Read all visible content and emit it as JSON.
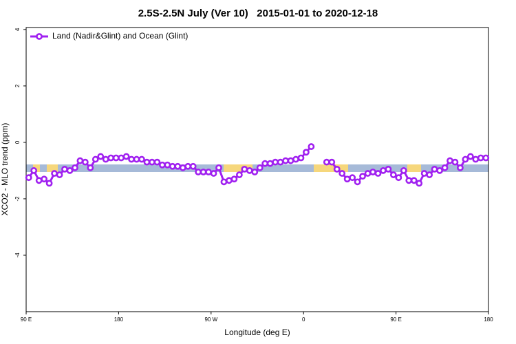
{
  "chart_data": {
    "type": "line",
    "title": "2.5S-2.5N July (Ver 10)   2015-01-01 to 2020-12-18",
    "x_label": "Longitude (deg E)",
    "y_label": "XCO2 - MLO trend (ppm)",
    "xlim": [
      90,
      540
    ],
    "ylim": [
      -6,
      4.07
    ],
    "xticks": [
      {
        "value": 90,
        "label": "90 E"
      },
      180,
      {
        "value": 270,
        "label": "90 W"
      },
      {
        "value": 360,
        "label": "0"
      },
      {
        "value": 450,
        "label": "90 E"
      },
      {
        "value": 540,
        "label": "180"
      }
    ],
    "yticks": [
      -4,
      -2,
      0,
      2,
      4
    ],
    "legend": "top-left",
    "x": [
      92.5,
      97.5,
      102.5,
      107.5,
      112.5,
      117.5,
      122.5,
      127.5,
      132.5,
      137.5,
      142.5,
      147.5,
      152.5,
      157.5,
      162.5,
      167.5,
      172.5,
      177.5,
      182.5,
      187.5,
      192.5,
      197.5,
      202.5,
      207.5,
      212.5,
      217.5,
      222.5,
      227.5,
      232.5,
      237.5,
      242.5,
      247.5,
      252.5,
      257.5,
      262.5,
      267.5,
      272.5,
      277.5,
      282.5,
      287.5,
      292.5,
      297.5,
      302.5,
      307.5,
      312.5,
      317.5,
      322.5,
      327.5,
      332.5,
      337.5,
      342.5,
      347.5,
      352.5,
      357.5,
      362.5,
      367.5,
      372.5,
      377.5,
      382.5,
      387.5,
      392.5,
      397.5,
      402.5,
      407.5,
      412.5,
      417.5,
      422.5,
      427.5,
      432.5,
      437.5,
      442.5,
      447.5,
      452.5,
      457.5,
      462.5,
      467.5,
      472.5,
      477.5,
      482.5,
      487.5,
      492.5,
      497.5,
      502.5,
      507.5,
      512.5,
      517.5,
      522.5,
      527.5,
      532.5,
      537.5
    ],
    "series": [
      {
        "name": "Land (Nadir&Glint) and Ocean (Glint)",
        "color": "#a020f0",
        "values": [
          -1.25,
          -1.0,
          -1.35,
          -1.3,
          -1.45,
          -1.1,
          -1.15,
          -0.95,
          -1.0,
          -0.9,
          -0.65,
          -0.7,
          -0.9,
          -0.6,
          -0.5,
          -0.6,
          -0.55,
          -0.55,
          -0.55,
          -0.5,
          -0.6,
          -0.6,
          -0.6,
          -0.7,
          -0.7,
          -0.7,
          -0.8,
          -0.8,
          -0.85,
          -0.85,
          -0.9,
          -0.85,
          -0.85,
          -1.05,
          -1.05,
          -1.05,
          -1.1,
          -0.9,
          -1.4,
          -1.35,
          -1.3,
          -1.15,
          -0.95,
          -1.0,
          -1.05,
          -0.9,
          -0.75,
          -0.75,
          -0.7,
          -0.7,
          -0.65,
          -0.65,
          -0.6,
          -0.55,
          -0.35,
          -0.15,
          null,
          null,
          -0.7,
          -0.7,
          -0.95,
          -1.1,
          -1.3,
          -1.25,
          -1.4,
          -1.2,
          -1.1,
          -1.05,
          -1.1,
          -1.0,
          -0.95,
          -1.15,
          -1.25,
          -1.0,
          -1.35,
          -1.35,
          -1.45,
          -1.1,
          -1.15,
          -0.95,
          -1.0,
          -0.9,
          -0.65,
          -0.7,
          -0.9,
          -0.6,
          -0.5,
          -0.6,
          -0.55,
          -0.55
        ]
      }
    ]
  }
}
